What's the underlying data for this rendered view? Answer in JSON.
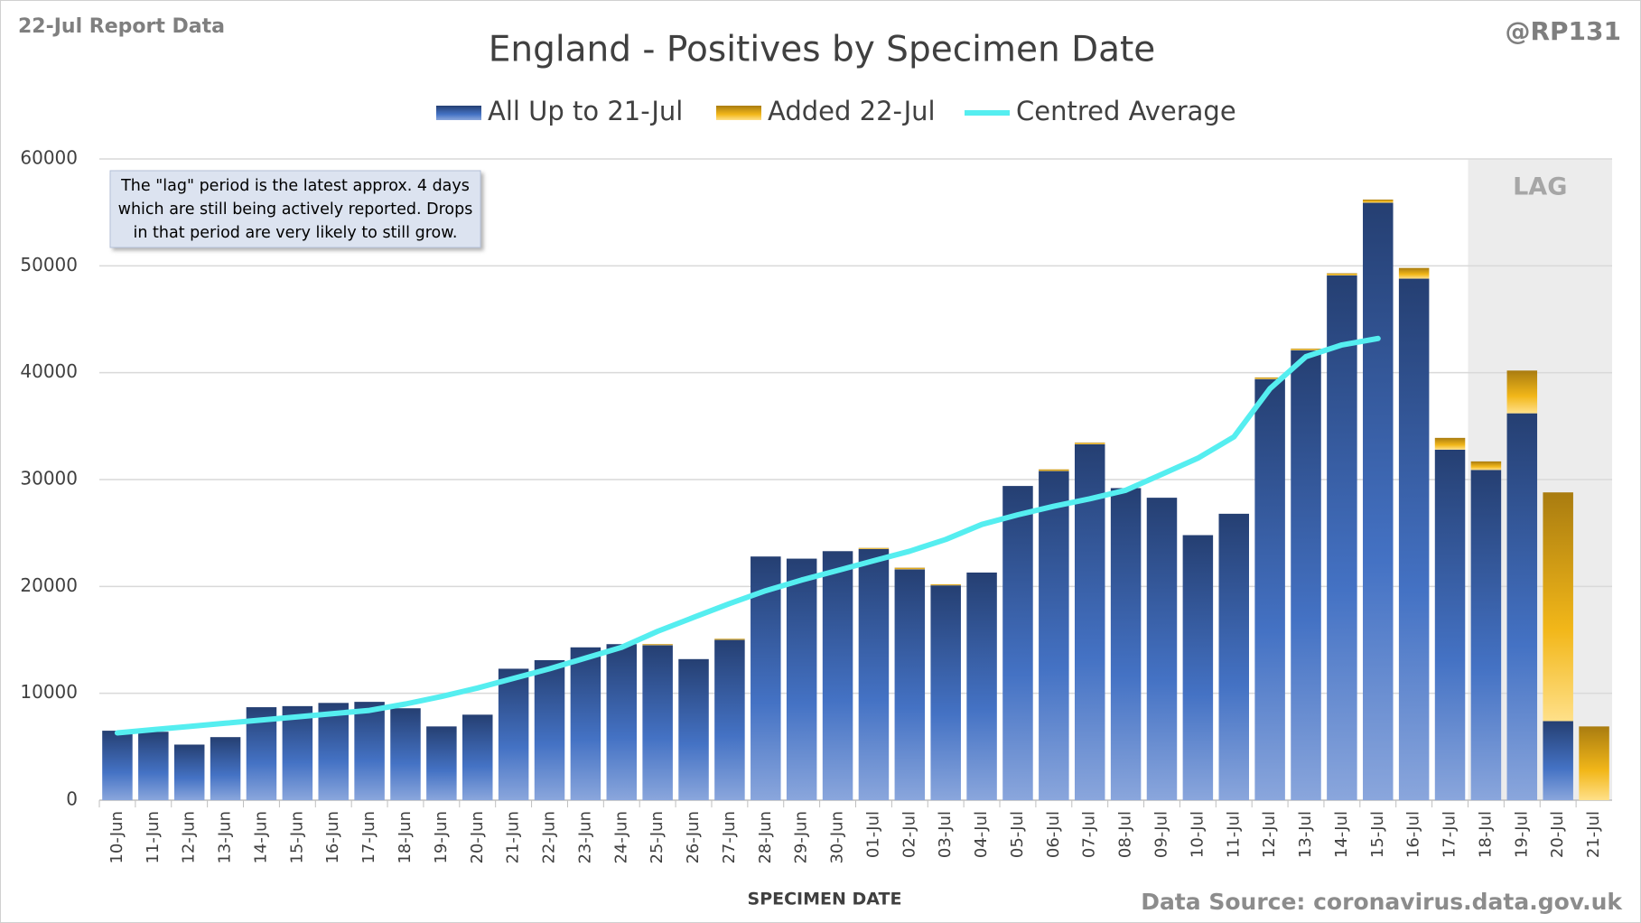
{
  "chart_data": {
    "type": "stacked-bar-line",
    "title": "England - Positives by Specimen Date",
    "corner_left": "22-Jul Report Data",
    "corner_right": "@RP131",
    "x_label": "SPECIMEN DATE",
    "source": "Data Source: coronavirus.data.gov.uk",
    "annotation": [
      "The \"lag\" period is the latest approx. 4 days",
      "which are still being actively reported.  Drops",
      "in that period are very likely to still grow."
    ],
    "shaded_region": {
      "label": "LAG",
      "from": "18-Jul",
      "to": "21-Jul"
    },
    "categories": [
      "10-Jun",
      "11-Jun",
      "12-Jun",
      "13-Jun",
      "14-Jun",
      "15-Jun",
      "16-Jun",
      "17-Jun",
      "18-Jun",
      "19-Jun",
      "20-Jun",
      "21-Jun",
      "22-Jun",
      "23-Jun",
      "24-Jun",
      "25-Jun",
      "26-Jun",
      "27-Jun",
      "28-Jun",
      "29-Jun",
      "30-Jun",
      "01-Jul",
      "02-Jul",
      "03-Jul",
      "04-Jul",
      "05-Jul",
      "06-Jul",
      "07-Jul",
      "08-Jul",
      "09-Jul",
      "10-Jul",
      "11-Jul",
      "12-Jul",
      "13-Jul",
      "14-Jul",
      "15-Jul",
      "16-Jul",
      "17-Jul",
      "18-Jul",
      "19-Jul",
      "20-Jul",
      "21-Jul"
    ],
    "series": [
      {
        "name": "All Up to 21-Jul",
        "color": "#3a5fa8",
        "kind": "bar",
        "values": [
          6500,
          6400,
          5200,
          5900,
          8700,
          8800,
          9100,
          9200,
          8600,
          6900,
          8000,
          12300,
          13100,
          14300,
          14600,
          14500,
          13200,
          15000,
          22800,
          22600,
          23300,
          23500,
          21600,
          20100,
          21300,
          29400,
          30800,
          33300,
          29200,
          28300,
          24800,
          26800,
          39400,
          42100,
          49100,
          55900,
          48800,
          32800,
          30900,
          36200,
          7400,
          0
        ]
      },
      {
        "name": "Added 22-Jul",
        "color": "#e6a817",
        "kind": "bar",
        "values": [
          0,
          0,
          0,
          0,
          0,
          0,
          0,
          0,
          0,
          0,
          0,
          0,
          0,
          0,
          0,
          100,
          0,
          100,
          0,
          0,
          0,
          100,
          150,
          100,
          0,
          0,
          150,
          150,
          0,
          0,
          0,
          0,
          150,
          150,
          200,
          300,
          1000,
          1100,
          800,
          4000,
          21400,
          6900
        ]
      },
      {
        "name": "Centred Average",
        "color": "#55eef0",
        "kind": "line",
        "values": [
          6300,
          6600,
          6900,
          7200,
          7500,
          7800,
          8100,
          8400,
          9000,
          9700,
          10500,
          11400,
          12300,
          13300,
          14300,
          15800,
          17100,
          18400,
          19600,
          20600,
          21500,
          22400,
          23300,
          24400,
          25800,
          26700,
          27500,
          28200,
          29000,
          30500,
          32000,
          34000,
          38500,
          41500,
          42600,
          43200,
          null,
          null,
          null,
          null,
          null,
          null
        ]
      }
    ],
    "ylim": [
      0,
      60000
    ],
    "yticks": [
      0,
      10000,
      20000,
      30000,
      40000,
      50000,
      60000
    ],
    "grid": true
  }
}
